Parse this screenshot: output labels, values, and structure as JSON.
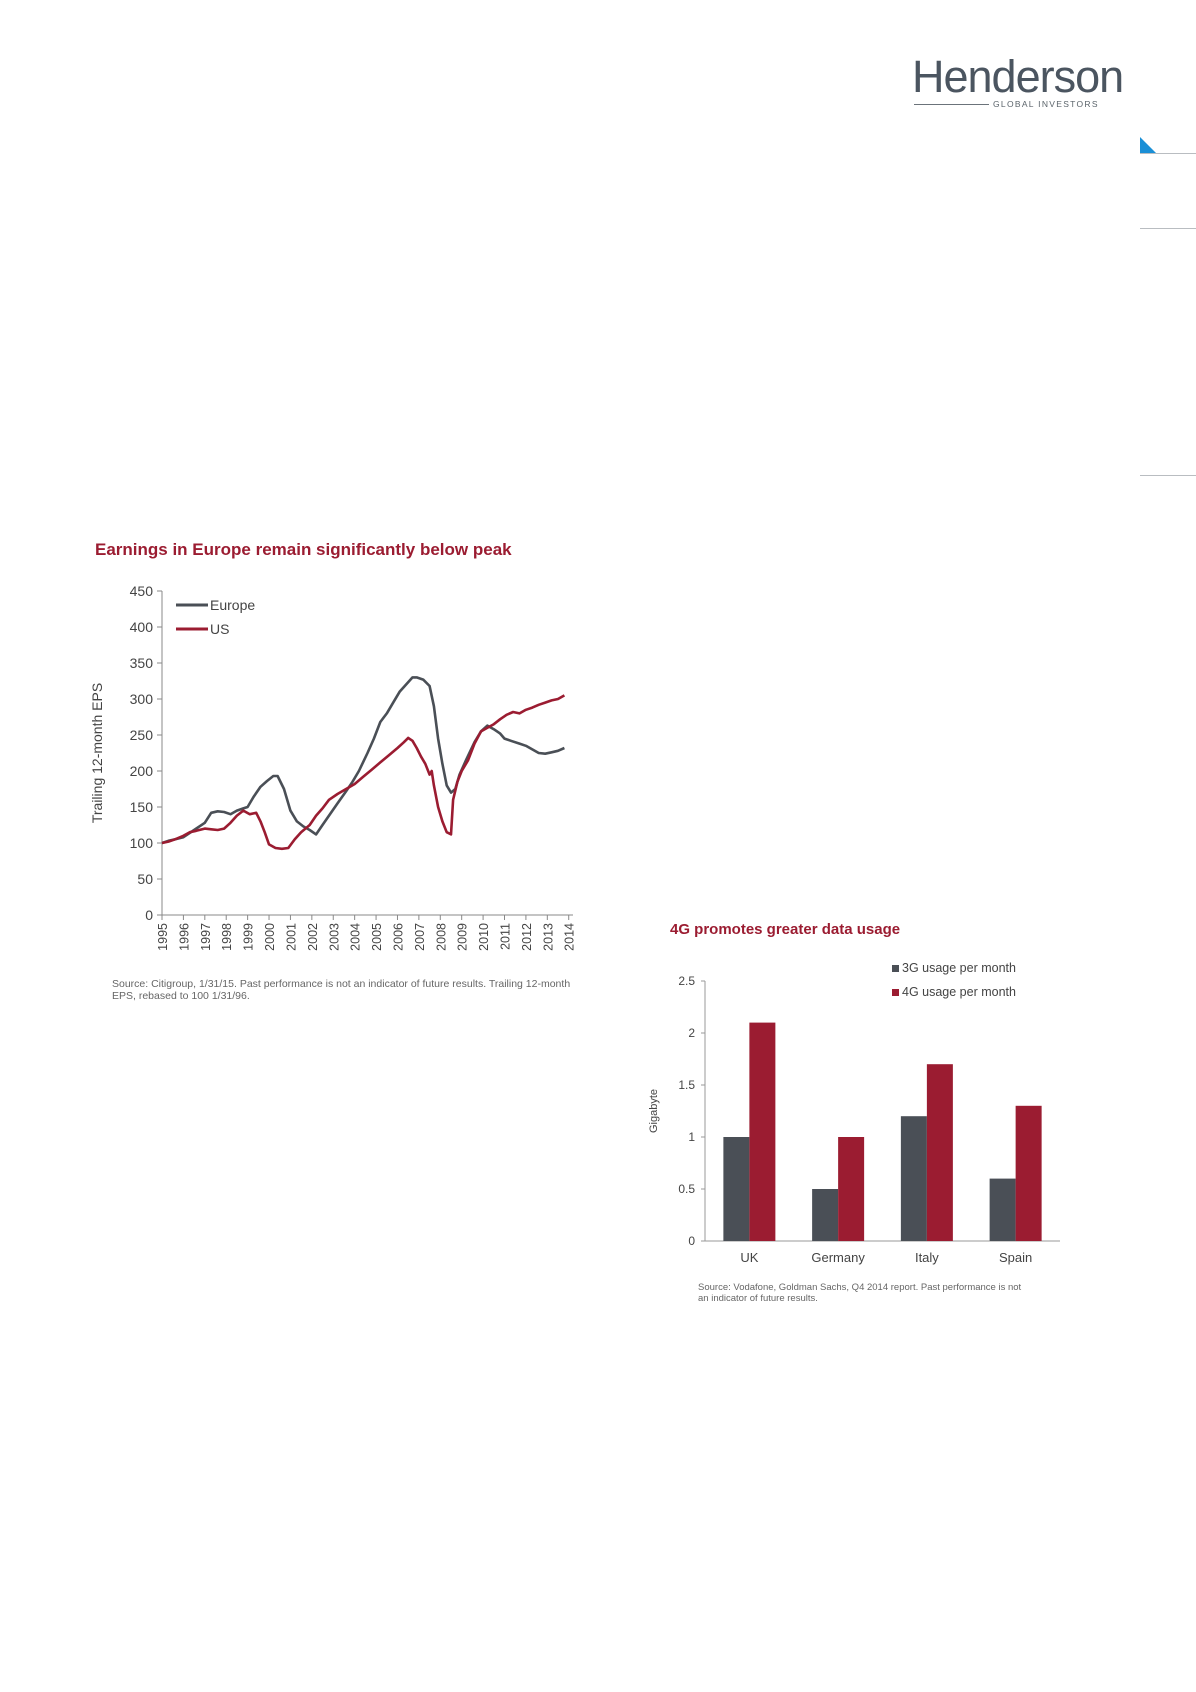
{
  "brand": {
    "name": "Henderson",
    "tagline": "GLOBAL INVESTORS",
    "accent": "#9b1c31",
    "europe_color": "#4a4f56",
    "us_color": "#9b1c31",
    "blue_marker": "#1a8fd6"
  },
  "chart1": {
    "title": "Earnings in Europe remain significantly below peak",
    "source": "Source: Citigroup, 1/31/15. Past performance is not an indicator of future results. Trailing 12-month EPS, rebased to 100 1/31/96."
  },
  "chart2": {
    "title": "4G promotes greater data usage",
    "source": "Source: Vodafone, Goldman Sachs, Q4 2014 report. Past performance is not an indicator of future results."
  },
  "chart_data": [
    {
      "type": "line",
      "title": "Earnings in Europe remain significantly below peak",
      "ylabel": "Trailing 12-month EPS",
      "xlabel": "",
      "ylim": [
        0,
        450
      ],
      "yticks": [
        0,
        50,
        100,
        150,
        200,
        250,
        300,
        350,
        400,
        450
      ],
      "xlim": [
        1995,
        2014.2
      ],
      "xticks": [
        "1995",
        "1996",
        "1997",
        "1998",
        "1999",
        "2000",
        "2001",
        "2002",
        "2003",
        "2004",
        "2005",
        "2006",
        "2007",
        "2008",
        "2009",
        "2010",
        "2011",
        "2012",
        "2013",
        "2014"
      ],
      "legend": "top-left",
      "grid": false,
      "series": [
        {
          "name": "Europe",
          "color": "#4a4f56",
          "points": [
            [
              1995.0,
              100
            ],
            [
              1995.3,
              103
            ],
            [
              1995.6,
              105
            ],
            [
              1996.0,
              108
            ],
            [
              1996.5,
              118
            ],
            [
              1997.0,
              128
            ],
            [
              1997.3,
              142
            ],
            [
              1997.6,
              144
            ],
            [
              1997.9,
              143
            ],
            [
              1998.2,
              140
            ],
            [
              1998.5,
              145
            ],
            [
              1998.8,
              148
            ],
            [
              1999.0,
              150
            ],
            [
              1999.3,
              165
            ],
            [
              1999.6,
              178
            ],
            [
              1999.9,
              186
            ],
            [
              2000.2,
              193
            ],
            [
              2000.4,
              193
            ],
            [
              2000.7,
              175
            ],
            [
              2001.0,
              145
            ],
            [
              2001.3,
              130
            ],
            [
              2001.6,
              123
            ],
            [
              2001.9,
              118
            ],
            [
              2002.2,
              112
            ],
            [
              2002.5,
              125
            ],
            [
              2002.8,
              138
            ],
            [
              2003.2,
              155
            ],
            [
              2003.6,
              172
            ],
            [
              2003.9,
              185
            ],
            [
              2004.2,
              200
            ],
            [
              2004.6,
              225
            ],
            [
              2004.9,
              245
            ],
            [
              2005.2,
              268
            ],
            [
              2005.5,
              280
            ],
            [
              2005.8,
              295
            ],
            [
              2006.1,
              310
            ],
            [
              2006.4,
              320
            ],
            [
              2006.7,
              330
            ],
            [
              2006.9,
              330
            ],
            [
              2007.2,
              327
            ],
            [
              2007.5,
              318
            ],
            [
              2007.7,
              290
            ],
            [
              2007.9,
              245
            ],
            [
              2008.1,
              210
            ],
            [
              2008.3,
              180
            ],
            [
              2008.5,
              170
            ],
            [
              2008.7,
              175
            ],
            [
              2008.9,
              195
            ],
            [
              2009.2,
              215
            ],
            [
              2009.6,
              240
            ],
            [
              2009.9,
              255
            ],
            [
              2010.2,
              263
            ],
            [
              2010.5,
              258
            ],
            [
              2010.8,
              252
            ],
            [
              2011.0,
              245
            ],
            [
              2011.3,
              242
            ],
            [
              2011.7,
              238
            ],
            [
              2012.0,
              235
            ],
            [
              2012.3,
              230
            ],
            [
              2012.6,
              225
            ],
            [
              2012.9,
              224
            ],
            [
              2013.2,
              226
            ],
            [
              2013.5,
              228
            ],
            [
              2013.8,
              232
            ]
          ]
        },
        {
          "name": "US",
          "color": "#9b1c31",
          "points": [
            [
              1995.0,
              100
            ],
            [
              1995.3,
              102
            ],
            [
              1995.6,
              105
            ],
            [
              1996.0,
              110
            ],
            [
              1996.3,
              115
            ],
            [
              1996.6,
              117
            ],
            [
              1997.0,
              120
            ],
            [
              1997.3,
              119
            ],
            [
              1997.6,
              118
            ],
            [
              1997.9,
              120
            ],
            [
              1998.2,
              128
            ],
            [
              1998.5,
              138
            ],
            [
              1998.8,
              145
            ],
            [
              1999.1,
              140
            ],
            [
              1999.4,
              142
            ],
            [
              1999.6,
              130
            ],
            [
              1999.8,
              115
            ],
            [
              2000.0,
              98
            ],
            [
              2000.3,
              93
            ],
            [
              2000.6,
              92
            ],
            [
              2000.9,
              93
            ],
            [
              2001.2,
              105
            ],
            [
              2001.5,
              115
            ],
            [
              2001.9,
              125
            ],
            [
              2002.2,
              138
            ],
            [
              2002.5,
              148
            ],
            [
              2002.8,
              160
            ],
            [
              2003.2,
              168
            ],
            [
              2003.6,
              175
            ],
            [
              2004.0,
              182
            ],
            [
              2004.4,
              192
            ],
            [
              2004.8,
              202
            ],
            [
              2005.2,
              212
            ],
            [
              2005.6,
              222
            ],
            [
              2006.0,
              232
            ],
            [
              2006.3,
              240
            ],
            [
              2006.5,
              246
            ],
            [
              2006.7,
              242
            ],
            [
              2006.9,
              232
            ],
            [
              2007.1,
              220
            ],
            [
              2007.3,
              210
            ],
            [
              2007.5,
              195
            ],
            [
              2007.6,
              200
            ],
            [
              2007.7,
              180
            ],
            [
              2007.9,
              150
            ],
            [
              2008.1,
              130
            ],
            [
              2008.3,
              115
            ],
            [
              2008.5,
              112
            ],
            [
              2008.6,
              160
            ],
            [
              2008.8,
              185
            ],
            [
              2009.0,
              200
            ],
            [
              2009.3,
              215
            ],
            [
              2009.6,
              238
            ],
            [
              2009.9,
              255
            ],
            [
              2010.2,
              260
            ],
            [
              2010.5,
              265
            ],
            [
              2010.8,
              272
            ],
            [
              2011.1,
              278
            ],
            [
              2011.4,
              282
            ],
            [
              2011.7,
              280
            ],
            [
              2012.0,
              285
            ],
            [
              2012.3,
              288
            ],
            [
              2012.6,
              292
            ],
            [
              2012.9,
              295
            ],
            [
              2013.2,
              298
            ],
            [
              2013.5,
              300
            ],
            [
              2013.8,
              305
            ]
          ]
        }
      ]
    },
    {
      "type": "bar",
      "title": "4G promotes greater data usage",
      "ylabel": "Gigabyte",
      "xlabel": "",
      "ylim": [
        0,
        2.5
      ],
      "yticks": [
        "0",
        "0.5",
        "1",
        "1.5",
        "2",
        "2.5"
      ],
      "categories": [
        "UK",
        "Germany",
        "Italy",
        "Spain"
      ],
      "legend": "top-right",
      "grid": false,
      "series": [
        {
          "name": "3G usage per month",
          "color": "#4a4f56",
          "values": [
            1.0,
            0.5,
            1.2,
            0.6
          ]
        },
        {
          "name": "4G usage per month",
          "color": "#9b1c31",
          "values": [
            2.1,
            1.0,
            1.7,
            1.3
          ]
        }
      ]
    }
  ]
}
